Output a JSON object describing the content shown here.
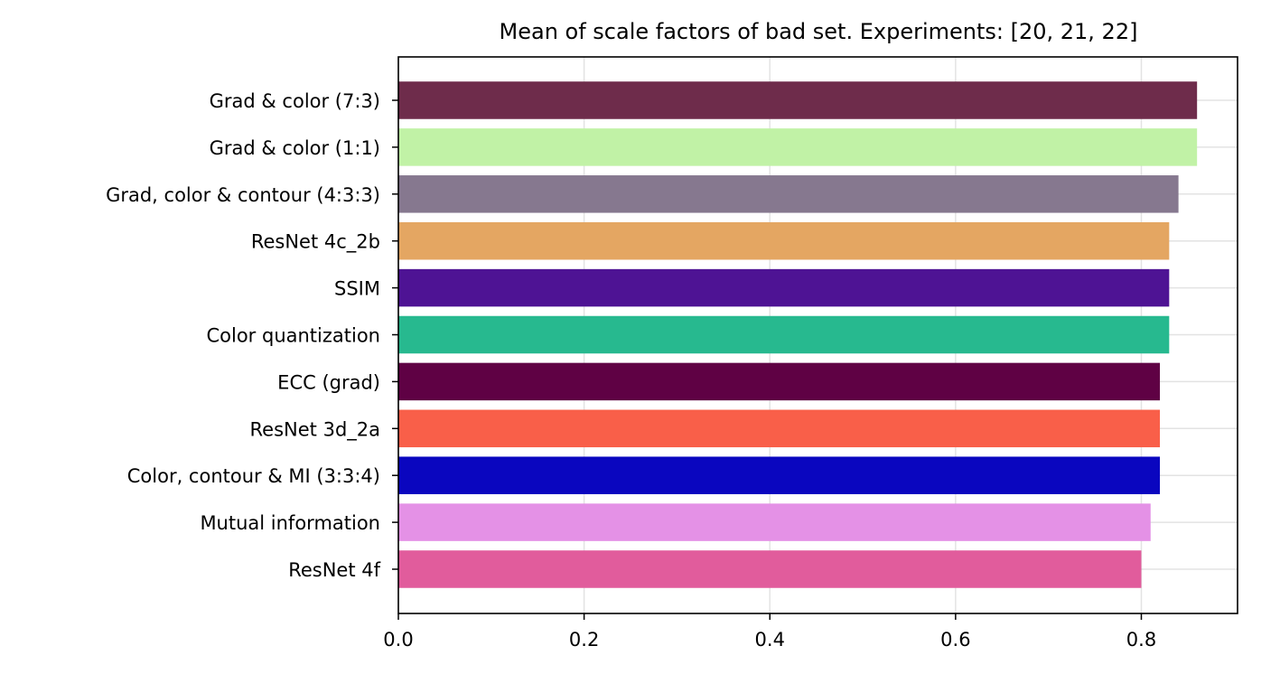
{
  "chart_data": {
    "type": "bar",
    "orientation": "horizontal",
    "title": "Mean of scale factors of bad set. Experiments: [20, 21, 22]",
    "xlabel": "",
    "ylabel": "",
    "xlim": [
      0,
      0.9036
    ],
    "xticks": [
      "0.0",
      "0.2",
      "0.4",
      "0.6",
      "0.8"
    ],
    "grid": true,
    "legend": "none",
    "categories": [
      "Grad & color (7:3)",
      "Grad & color (1:1)",
      "Grad, color & contour (4:3:3)",
      "ResNet 4c_2b",
      "SSIM",
      "Color quantization",
      "ECC (grad)",
      "ResNet 3d_2a",
      "Color, contour & MI (3:3:4)",
      "Mutual information",
      "ResNet 4f"
    ],
    "values": [
      0.86,
      0.86,
      0.84,
      0.83,
      0.83,
      0.83,
      0.82,
      0.82,
      0.82,
      0.81,
      0.8
    ],
    "colors": [
      "#6e2c4b",
      "#c1f2a6",
      "#86788f",
      "#e4a662",
      "#4e1394",
      "#27b98f",
      "#5f0144",
      "#f95f49",
      "#0a06bf",
      "#e491e6",
      "#e15c9c"
    ]
  }
}
